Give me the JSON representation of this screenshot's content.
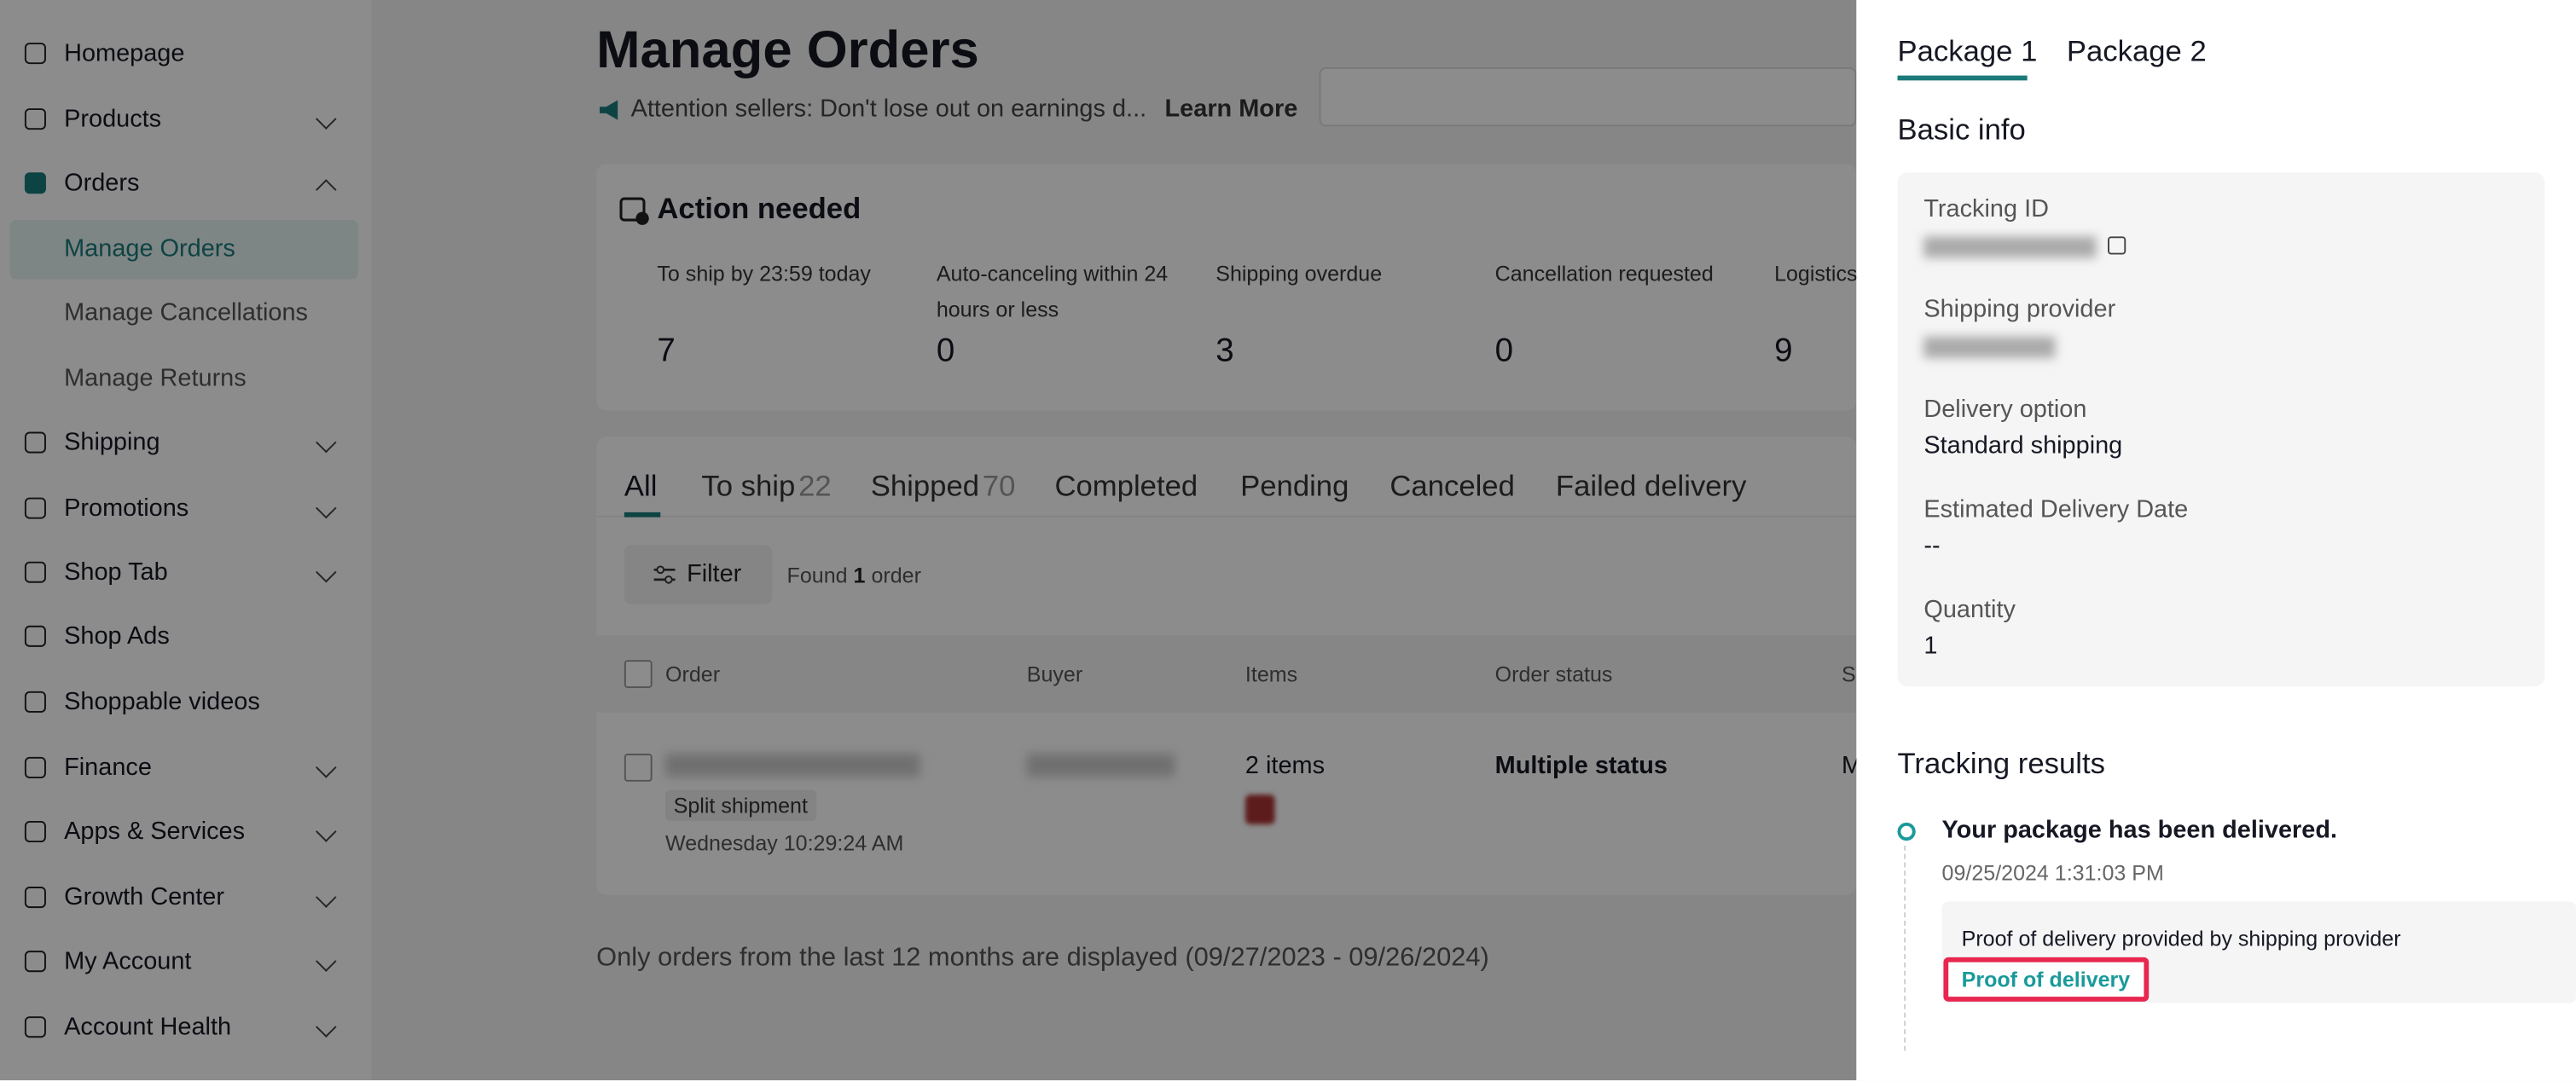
{
  "sidebar": {
    "items": [
      {
        "label": "Homepage"
      },
      {
        "label": "Products"
      },
      {
        "label": "Orders"
      },
      {
        "label": "Manage Orders"
      },
      {
        "label": "Manage Cancellations"
      },
      {
        "label": "Manage Returns"
      },
      {
        "label": "Shipping"
      },
      {
        "label": "Promotions"
      },
      {
        "label": "Shop Tab"
      },
      {
        "label": "Shop Ads"
      },
      {
        "label": "Shoppable videos"
      },
      {
        "label": "Finance"
      },
      {
        "label": "Apps & Services"
      },
      {
        "label": "Growth Center"
      },
      {
        "label": "My Account"
      },
      {
        "label": "Account Health"
      }
    ]
  },
  "header": {
    "title": "Manage Orders",
    "notice": "Attention sellers: Don't lose out on earnings d...",
    "learn_more": "Learn More"
  },
  "action_needed": {
    "title": "Action needed",
    "stats": [
      {
        "label": "To ship by 23:59 today",
        "value": 7
      },
      {
        "label": "Auto-canceling within 24 hours or less",
        "value": 0
      },
      {
        "label": "Shipping overdue",
        "value": 3
      },
      {
        "label": "Cancellation requested",
        "value": 0
      },
      {
        "label": "Logistics",
        "value": 9
      }
    ]
  },
  "tabs": [
    {
      "label": "All"
    },
    {
      "label": "To ship",
      "count": 22
    },
    {
      "label": "Shipped",
      "count": 70
    },
    {
      "label": "Completed"
    },
    {
      "label": "Pending"
    },
    {
      "label": "Canceled"
    },
    {
      "label": "Failed delivery"
    }
  ],
  "filter": {
    "button": "Filter",
    "found": "Found",
    "count": 1,
    "unit": "order"
  },
  "table": {
    "headers": [
      "Order",
      "Buyer",
      "Items",
      "Order status",
      "S"
    ],
    "rows": [
      {
        "tag": "Split shipment",
        "time": "Wednesday 10:29:24 AM",
        "items": "2 items",
        "status": "Multiple status",
        "extra": "M"
      }
    ]
  },
  "footer": "Only orders from the last 12 months are displayed (09/27/2023 - 09/26/2024)",
  "panel": {
    "tabs": [
      "Package 1",
      "Package 2"
    ],
    "basic_info": "Basic info",
    "fields": [
      {
        "label": "Tracking ID"
      },
      {
        "label": "Shipping provider"
      },
      {
        "label": "Delivery option",
        "value": "Standard shipping"
      },
      {
        "label": "Estimated Delivery Date",
        "value": "--"
      },
      {
        "label": "Quantity",
        "value": "1"
      }
    ],
    "tracking_title": "Tracking results",
    "event": {
      "title": "Your package has been delivered.",
      "time": "09/25/2024 1:31:03 PM",
      "note": "Proof of delivery provided by shipping provider",
      "link": "Proof of delivery"
    }
  }
}
